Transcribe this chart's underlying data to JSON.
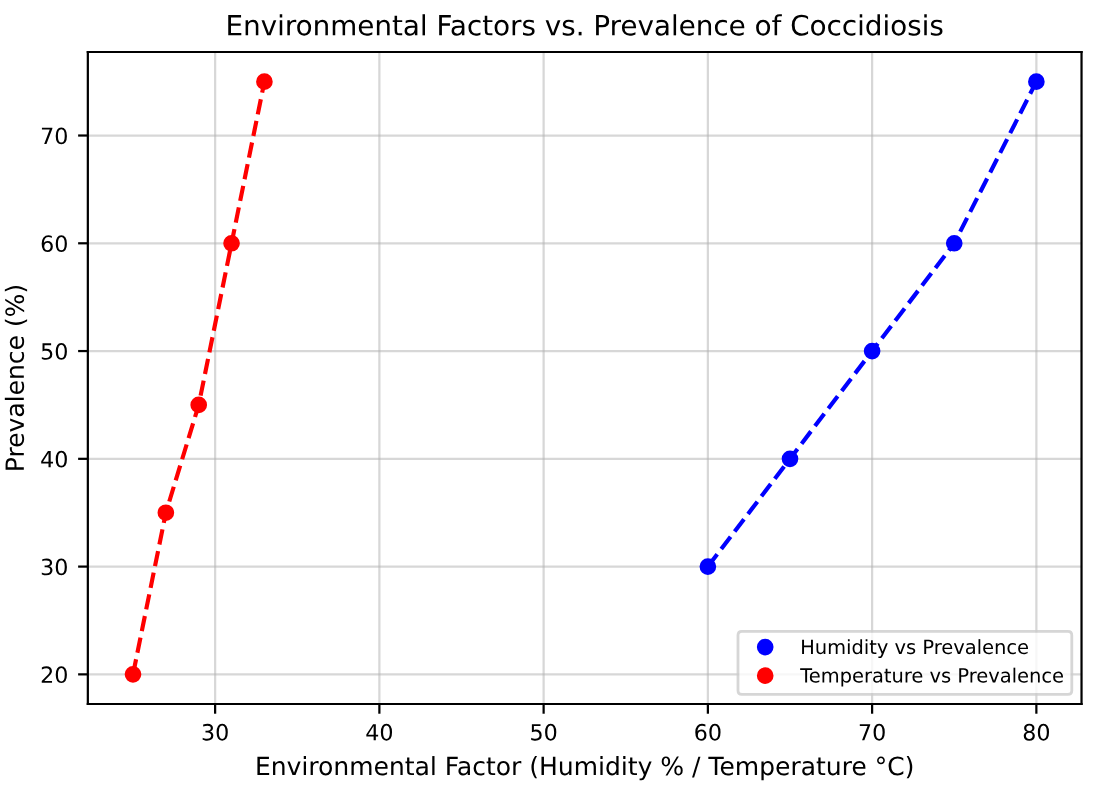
{
  "chart_data": {
    "type": "line",
    "title": "Environmental Factors vs. Prevalence of Coccidiosis",
    "xlabel": "Environmental Factor (Humidity % / Temperature °C)",
    "ylabel": "Prevalence (%)",
    "series": [
      {
        "name": "Humidity vs Prevalence",
        "color": "#0000ff",
        "x": [
          60,
          65,
          70,
          75,
          80
        ],
        "values": [
          30,
          40,
          50,
          60,
          75
        ]
      },
      {
        "name": "Temperature vs Prevalence",
        "color": "#ff0000",
        "x": [
          25,
          27,
          29,
          31,
          33
        ],
        "values": [
          20,
          35,
          45,
          60,
          75
        ]
      }
    ],
    "xlim": [
      22.25,
      82.75
    ],
    "ylim": [
      17.25,
      77.75
    ],
    "xticks": [
      30,
      40,
      50,
      60,
      70,
      80
    ],
    "yticks": [
      20,
      30,
      40,
      50,
      60,
      70
    ],
    "grid": true,
    "legend": "bottom right",
    "marker": "circle",
    "line_style": "dashed"
  }
}
